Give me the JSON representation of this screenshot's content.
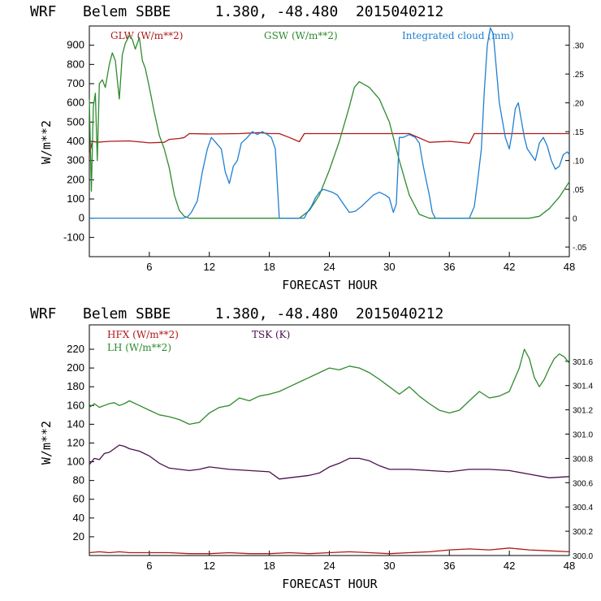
{
  "colors": {
    "glw": "#b01818",
    "gsw": "#2e8b2e",
    "cloud": "#1f7fd0",
    "hfx": "#b01818",
    "lh": "#2e8b2e",
    "tsk": "#4b0f4b"
  },
  "chart_data": [
    {
      "type": "line",
      "title": "WRF   Belem SBBE     1.380, -48.480  2015040212",
      "xlabel": "FORECAST HOUR",
      "ylabel": "W/m**2",
      "xlim": [
        0,
        48
      ],
      "ylim": [
        -200,
        1000
      ],
      "xticks": [
        6,
        12,
        18,
        24,
        30,
        36,
        42,
        48
      ],
      "yticks": [
        -100,
        0,
        100,
        200,
        300,
        400,
        500,
        600,
        700,
        800,
        900
      ],
      "y2lim": [
        -0.0667,
        0.3333
      ],
      "y2ticks": [
        -0.05,
        0,
        0.05,
        0.1,
        0.15,
        0.2,
        0.25,
        0.3
      ],
      "y2ticklabels": [
        "-.05",
        "0",
        ".05",
        ".10",
        ".15",
        ".20",
        ".25",
        ".30"
      ],
      "series": [
        {
          "name": "GLW (W/m**2)",
          "color_key": "glw",
          "axis": "left",
          "x": [
            0,
            0.3,
            0.8,
            2,
            4,
            6,
            7.5,
            8,
            9,
            9.5,
            10,
            12,
            15,
            17,
            18,
            19,
            20,
            21,
            21.5,
            23,
            26,
            30,
            32,
            34,
            36,
            38,
            38.5,
            40,
            44,
            48
          ],
          "y": [
            330,
            400,
            395,
            400,
            402,
            392,
            395,
            410,
            415,
            420,
            440,
            438,
            440,
            445,
            440,
            440,
            420,
            398,
            440,
            440,
            440,
            440,
            440,
            395,
            400,
            390,
            440,
            440,
            440,
            440
          ]
        },
        {
          "name": "GSW (W/m**2)",
          "color_key": "gsw",
          "axis": "left",
          "x": [
            0,
            0.2,
            0.4,
            0.6,
            0.8,
            1,
            1.3,
            1.6,
            2,
            2.3,
            2.6,
            3,
            3.3,
            3.6,
            4,
            4.3,
            4.6,
            5,
            5.3,
            5.6,
            6,
            6.5,
            7,
            7.5,
            8,
            8.5,
            9,
            9.5,
            10,
            20,
            21,
            22,
            23,
            24,
            25,
            26,
            26.5,
            27,
            28,
            29,
            30,
            31,
            32,
            33,
            34,
            44,
            45,
            46,
            47,
            48
          ],
          "y": [
            620,
            140,
            580,
            650,
            300,
            700,
            720,
            680,
            800,
            860,
            820,
            620,
            850,
            910,
            950,
            930,
            880,
            940,
            820,
            780,
            680,
            550,
            430,
            360,
            260,
            120,
            40,
            10,
            0,
            0,
            0,
            40,
            120,
            250,
            400,
            580,
            680,
            710,
            680,
            620,
            500,
            300,
            120,
            20,
            0,
            0,
            10,
            50,
            110,
            190
          ]
        },
        {
          "name": "Integrated cloud (mm)",
          "color_key": "cloud",
          "axis": "right",
          "x": [
            0,
            9.3,
            9.8,
            10.2,
            10.8,
            11.3,
            11.8,
            12.2,
            12.7,
            13.2,
            13.6,
            14,
            14.4,
            14.8,
            15.2,
            15.8,
            16.3,
            16.8,
            17.3,
            17.8,
            18.2,
            18.6,
            19,
            21.5,
            21.8,
            22.2,
            22.6,
            23,
            23.4,
            23.8,
            24.3,
            24.8,
            25.4,
            26,
            26.6,
            27.2,
            27.8,
            28.4,
            29,
            29.6,
            30,
            30.4,
            30.7,
            31,
            31.4,
            32,
            32.6,
            33,
            33.4,
            34,
            34.3,
            34.6,
            38,
            38.5,
            38.8,
            39.2,
            39.5,
            39.8,
            40.1,
            40.4,
            40.7,
            41,
            41.3,
            41.6,
            42,
            42.3,
            42.6,
            42.9,
            43.2,
            43.5,
            43.8,
            44.2,
            44.6,
            45,
            45.4,
            45.8,
            46.2,
            46.6,
            47,
            47.4,
            47.8,
            48
          ],
          "y": [
            0,
            0,
            0.002,
            0.01,
            0.03,
            0.08,
            0.12,
            0.14,
            0.13,
            0.12,
            0.08,
            0.06,
            0.09,
            0.1,
            0.13,
            0.14,
            0.15,
            0.145,
            0.15,
            0.145,
            0.14,
            0.12,
            0.0,
            0.0,
            0.01,
            0.02,
            0.035,
            0.045,
            0.05,
            0.048,
            0.045,
            0.04,
            0.025,
            0.01,
            0.012,
            0.02,
            0.03,
            0.04,
            0.045,
            0.04,
            0.035,
            0.01,
            0.025,
            0.14,
            0.14,
            0.145,
            0.14,
            0.13,
            0.09,
            0.04,
            0.01,
            0.0,
            0.0,
            0.02,
            0.06,
            0.12,
            0.22,
            0.3,
            0.33,
            0.32,
            0.26,
            0.2,
            0.17,
            0.14,
            0.12,
            0.15,
            0.19,
            0.2,
            0.17,
            0.14,
            0.12,
            0.11,
            0.1,
            0.13,
            0.14,
            0.125,
            0.1,
            0.085,
            0.09,
            0.11,
            0.115,
            0.11
          ]
        }
      ]
    },
    {
      "type": "line",
      "title": "WRF   Belem SBBE     1.380, -48.480  2015040212",
      "xlabel": "FORECAST HOUR",
      "ylabel": "W/m**2",
      "xlim": [
        0,
        48
      ],
      "ylim": [
        0,
        246
      ],
      "xticks": [
        6,
        12,
        18,
        24,
        30,
        36,
        42,
        48
      ],
      "yticks": [
        20,
        40,
        60,
        80,
        100,
        120,
        140,
        160,
        180,
        200,
        220
      ],
      "y2lim": [
        300.0,
        301.9
      ],
      "y2ticks": [
        300.0,
        300.2,
        300.4,
        300.6,
        300.8,
        301.0,
        301.2,
        301.4,
        301.6
      ],
      "y2ticklabels": [
        "300.0",
        "300.2",
        "300.4",
        "300.6",
        "300.8",
        "301.0",
        "301.2",
        "301.4",
        "301.6"
      ],
      "series": [
        {
          "name": "HFX (W/m**2)",
          "color_key": "hfx",
          "axis": "left",
          "x": [
            0,
            1,
            2,
            3,
            4,
            6,
            8,
            10,
            12,
            14,
            16,
            18,
            20,
            22,
            24,
            26,
            28,
            30,
            32,
            34,
            36,
            38,
            40,
            42,
            44,
            46,
            48
          ],
          "y": [
            3,
            4,
            3,
            4,
            3,
            3,
            3,
            2,
            2,
            3,
            2,
            2,
            3,
            2,
            3,
            4,
            3,
            2,
            3,
            4,
            6,
            7,
            6,
            8,
            6,
            5,
            4
          ]
        },
        {
          "name": "LH (W/m**2)",
          "color_key": "lh",
          "axis": "left",
          "x": [
            0,
            0.5,
            1,
            1.5,
            2,
            2.5,
            3,
            3.5,
            4,
            5,
            6,
            7,
            8,
            9,
            10,
            11,
            12,
            13,
            14,
            15,
            16,
            17,
            18,
            19,
            20,
            21,
            22,
            23,
            24,
            25,
            26,
            27,
            28,
            29,
            30,
            31,
            32,
            33,
            34,
            35,
            36,
            37,
            38,
            39,
            40,
            41,
            42,
            43,
            43.5,
            44,
            44.5,
            45,
            45.5,
            46,
            46.5,
            47,
            47.5,
            48
          ],
          "y": [
            158,
            162,
            158,
            160,
            162,
            163,
            160,
            162,
            165,
            160,
            155,
            150,
            148,
            145,
            140,
            142,
            152,
            158,
            160,
            168,
            165,
            170,
            172,
            175,
            180,
            185,
            190,
            195,
            200,
            198,
            202,
            200,
            195,
            188,
            180,
            172,
            180,
            170,
            162,
            155,
            152,
            155,
            165,
            175,
            168,
            170,
            175,
            200,
            220,
            210,
            190,
            180,
            188,
            200,
            210,
            215,
            212,
            205
          ]
        },
        {
          "name": "TSK (K)",
          "color_key": "tsk",
          "axis": "right",
          "x": [
            0,
            0.5,
            1,
            1.5,
            2,
            2.5,
            3,
            3.5,
            4,
            5,
            6,
            7,
            8,
            9,
            10,
            11,
            12,
            13,
            14,
            16,
            18,
            19,
            20,
            21,
            22,
            23,
            24,
            25,
            26,
            27,
            28,
            29,
            30,
            32,
            34,
            36,
            38,
            40,
            42,
            44,
            46,
            48
          ],
          "y": [
            300.75,
            300.8,
            300.79,
            300.84,
            300.85,
            300.88,
            300.91,
            300.9,
            300.88,
            300.86,
            300.82,
            300.76,
            300.72,
            300.71,
            300.7,
            300.71,
            300.73,
            300.72,
            300.71,
            300.7,
            300.69,
            300.63,
            300.64,
            300.65,
            300.66,
            300.68,
            300.73,
            300.76,
            300.8,
            300.8,
            300.78,
            300.74,
            300.71,
            300.71,
            300.7,
            300.69,
            300.71,
            300.71,
            300.7,
            300.67,
            300.64,
            300.65
          ]
        }
      ]
    }
  ]
}
